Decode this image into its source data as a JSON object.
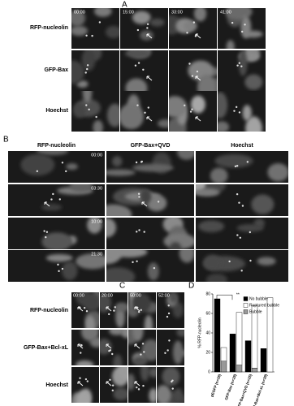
{
  "panel_a": {
    "label": "A",
    "times": [
      "00:00",
      "15:00",
      "33:00",
      "41:00"
    ],
    "rows": [
      "RFP-nucleolin",
      "GFP-Bax",
      "Hoechst"
    ]
  },
  "panel_b": {
    "label": "B",
    "columns": [
      "RFP-nucleolin",
      "GFP-Bax+QVD",
      "Hoechst"
    ],
    "times": [
      "00:00",
      "03:30",
      "10:00",
      "21:30"
    ]
  },
  "panel_c": {
    "label": "C",
    "times": [
      "00:00",
      "20:00",
      "50:00",
      "52:00"
    ],
    "rows": [
      "RFP-nucleolin",
      "GFP-Bax+Bcl-xL",
      "Hoechst"
    ]
  },
  "chart_data": {
    "type": "bar",
    "label": "D",
    "y_label": "% RFP-nucleolin",
    "categories": [
      "pEGFP (n=28)",
      "GFP-Bax (n=28)",
      "GFP-Bax+QVD (n=25)",
      "GFP-Bax+Bcl-xL (n=39)"
    ],
    "series": [
      {
        "name": "No bubble",
        "color": "#000000",
        "values": [
          75,
          39,
          32,
          24
        ]
      },
      {
        "name": "Bubble",
        "color": "#999999",
        "values": [
          11,
          7,
          4,
          0
        ]
      },
      {
        "name": "Ruptured bubble",
        "color": "#ffffff",
        "values": [
          14,
          54,
          64,
          76
        ]
      }
    ],
    "ylim": [
      0,
      80
    ],
    "yticks": [
      0,
      20,
      40,
      60,
      80
    ],
    "annotation": "**"
  }
}
